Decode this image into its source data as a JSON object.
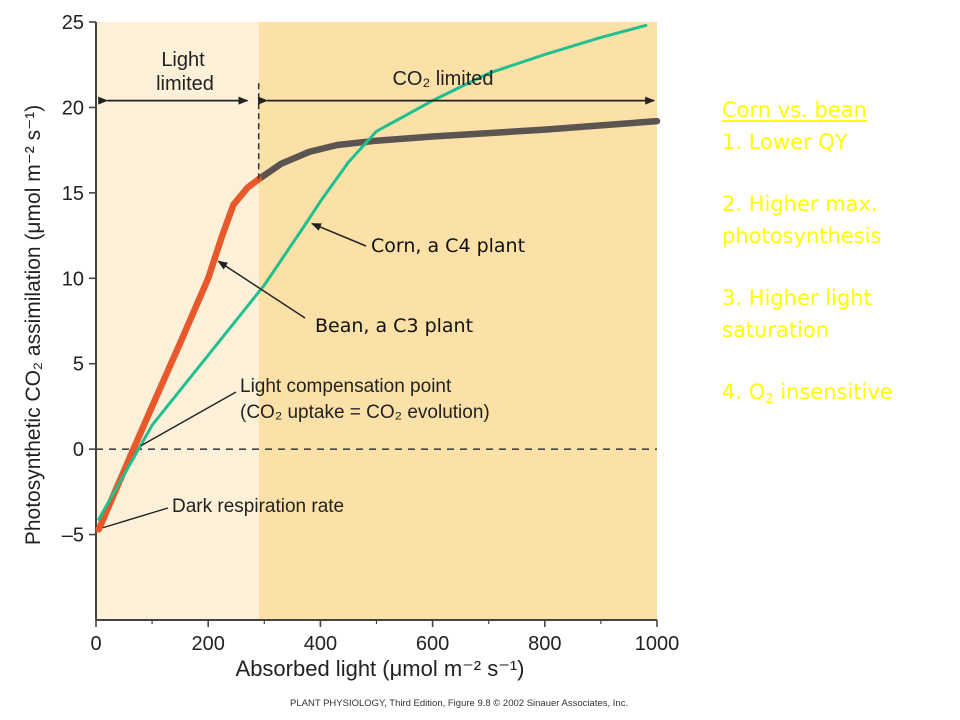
{
  "chart_data": {
    "type": "line",
    "xlabel": "Absorbed light (μmol m⁻² s⁻¹)",
    "ylabel": "Photosynthetic CO₂ assimilation (μmol m⁻² s⁻¹)",
    "xlim": [
      0,
      1000
    ],
    "ylim": [
      -10,
      25
    ],
    "x_ticks": [
      "0",
      "200",
      "400",
      "600",
      "800",
      "1000"
    ],
    "y_ticks": [
      "–5",
      "0",
      "5",
      "10",
      "15",
      "20",
      "25"
    ],
    "zero_line": 0,
    "light_limit_boundary": 290,
    "series": [
      {
        "name": "Bean, a C3 plant",
        "colors": {
          "light_limited": "#e8582a",
          "co2_limited": "#5a5550"
        },
        "points": [
          [
            5,
            -4.7
          ],
          [
            60,
            -0.5
          ],
          [
            100,
            2.5
          ],
          [
            150,
            6.2
          ],
          [
            200,
            10
          ],
          [
            225,
            12.5
          ],
          [
            245,
            14.3
          ],
          [
            270,
            15.3
          ],
          [
            290,
            15.8
          ],
          [
            330,
            16.7
          ],
          [
            380,
            17.4
          ],
          [
            430,
            17.8
          ],
          [
            500,
            18.05
          ],
          [
            600,
            18.3
          ],
          [
            700,
            18.5
          ],
          [
            800,
            18.7
          ],
          [
            900,
            18.95
          ],
          [
            1000,
            19.2
          ]
        ]
      },
      {
        "name": "Corn, a C4 plant",
        "color": "#1fbf8f",
        "points": [
          [
            5,
            -4.1
          ],
          [
            50,
            -1.5
          ],
          [
            100,
            1.4
          ],
          [
            200,
            5.5
          ],
          [
            300,
            9.6
          ],
          [
            370,
            13
          ],
          [
            400,
            14.5
          ],
          [
            450,
            16.8
          ],
          [
            500,
            18.6
          ],
          [
            550,
            19.5
          ],
          [
            600,
            20.4
          ],
          [
            650,
            21.2
          ],
          [
            700,
            22
          ],
          [
            800,
            23.1
          ],
          [
            900,
            24.1
          ],
          [
            980,
            24.8
          ]
        ]
      }
    ],
    "regions": [
      {
        "label": "Light limited",
        "from": 0,
        "to": 290,
        "color": "#fdf0d8"
      },
      {
        "label": "CO₂ limited",
        "from": 290,
        "to": 1000,
        "color": "#fbe0a8"
      }
    ],
    "annotations": {
      "corn": "Corn, a C4 plant",
      "bean": "Bean, a C3 plant",
      "lcp_line1": "Light compensation point",
      "lcp_line2": "(CO₂ uptake = CO₂ evolution)",
      "dark": "Dark respiration rate"
    },
    "credit": "PLANT PHYSIOLOGY, Third Edition, Figure 9.8  © 2002 Sinauer Associates, Inc."
  },
  "notes": {
    "heading": "Corn vs. bean",
    "item1": "1.  Lower QY",
    "item2a": "2. Higher max.",
    "item2b": "photosynthesis",
    "item3a": "3. Higher light",
    "item3b": "saturation",
    "item4_prefix": "4. O",
    "item4_sub": "2",
    "item4_suffix": " insensitive"
  }
}
